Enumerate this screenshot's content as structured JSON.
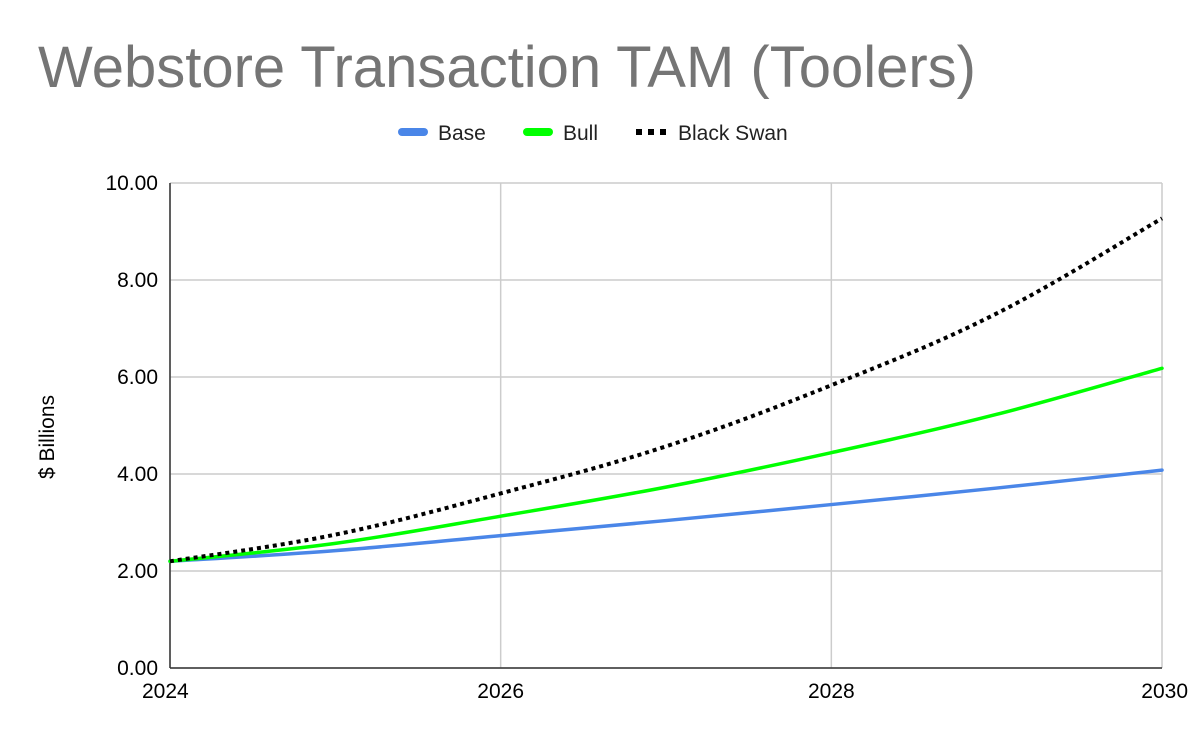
{
  "chart_data": {
    "type": "line",
    "title": "Webstore Transaction TAM (Toolers)",
    "xlabel": "",
    "ylabel": "$ Billions",
    "x": [
      2024,
      2025,
      2026,
      2027,
      2028,
      2029,
      2030
    ],
    "x_ticks": [
      "2024",
      "2026",
      "2028",
      "2030"
    ],
    "x_tick_values": [
      2024,
      2026,
      2028,
      2030
    ],
    "xlim": [
      2024,
      2030
    ],
    "ylim": [
      0,
      10
    ],
    "y_ticks": [
      "0.00",
      "2.00",
      "4.00",
      "6.00",
      "8.00",
      "10.00"
    ],
    "y_tick_values": [
      0,
      2,
      4,
      6,
      8,
      10
    ],
    "grid": true,
    "legend_position": "top-center",
    "series": [
      {
        "name": "Base",
        "color": "#4a86e8",
        "dash": "solid",
        "values": [
          2.2,
          2.42,
          2.73,
          3.04,
          3.37,
          3.71,
          4.08
        ]
      },
      {
        "name": "Bull",
        "color": "#00ff00",
        "dash": "solid",
        "values": [
          2.2,
          2.57,
          3.13,
          3.73,
          4.44,
          5.23,
          6.18
        ]
      },
      {
        "name": "Black Swan",
        "color": "#000000",
        "dash": "dotted",
        "values": [
          2.2,
          2.75,
          3.6,
          4.57,
          5.83,
          7.31,
          9.27
        ]
      }
    ]
  }
}
